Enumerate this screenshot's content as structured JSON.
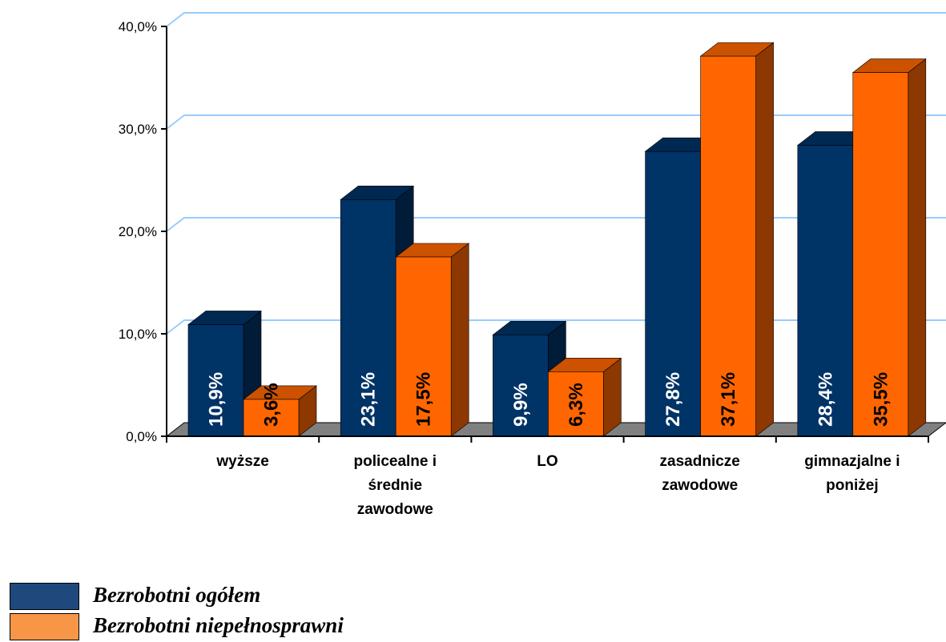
{
  "chart_data": {
    "type": "bar",
    "title": "",
    "xlabel": "",
    "ylabel": "",
    "categories": [
      [
        "wyższe"
      ],
      [
        "policealne i",
        "średnie",
        "zawodowe"
      ],
      [
        "LO"
      ],
      [
        "zasadnicze",
        "zawodowe"
      ],
      [
        "gimnazjalne i",
        "poniżej"
      ]
    ],
    "series": [
      {
        "name": "Bezrobotni ogółem",
        "values": [
          10.9,
          23.1,
          9.9,
          27.8,
          28.4
        ],
        "labels": [
          "10,9%",
          "23,1%",
          "9,9%",
          "27,8%",
          "28,4%"
        ],
        "color": "#003366",
        "label_color": "#ffffff"
      },
      {
        "name": "Bezrobotni niepełnosprawni",
        "values": [
          3.6,
          17.5,
          6.3,
          37.1,
          35.5
        ],
        "labels": [
          "3,6%",
          "17,5%",
          "6,3%",
          "37,1%",
          "35,5%"
        ],
        "color": "#ff6600",
        "label_color": "#000000"
      }
    ],
    "ylim": [
      0,
      40
    ],
    "yticks": [
      0,
      10,
      20,
      30,
      40
    ],
    "ytick_labels": [
      "0,0%",
      "10,0%",
      "20,0%",
      "30,0%",
      "40,0%"
    ],
    "grid": true,
    "grid_color": "#99ccff",
    "legend_position": "bottom-left",
    "legend_colors": [
      "#1f497d",
      "#f79646"
    ],
    "style": "3d"
  }
}
